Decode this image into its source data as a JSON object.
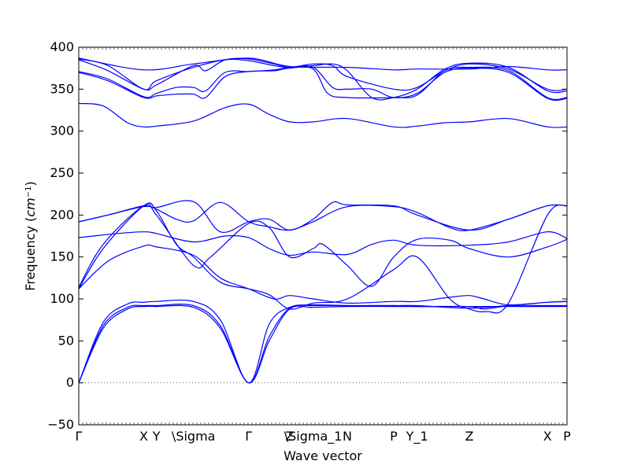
{
  "chart_data": {
    "type": "line",
    "title": "",
    "xlabel": "Wave vector",
    "ylabel": "Frequency (cm^-1)",
    "ylabel_math": "cm",
    "ylabel_exp": "−1",
    "ylim": [
      -50,
      400
    ],
    "yticks": [
      -50,
      0,
      50,
      100,
      150,
      200,
      250,
      300,
      350,
      400
    ],
    "xlim": [
      0,
      1
    ],
    "grid": false,
    "zero_line": {
      "value": 0,
      "style": "dotted"
    },
    "line_color": "#0000ff",
    "kpoints": [
      {
        "label": "Γ",
        "x": 0.0
      },
      {
        "label": "X",
        "x": 0.133
      },
      {
        "label": "Y",
        "x": 0.159
      },
      {
        "label": "\\Sigma",
        "x": 0.235
      },
      {
        "label": "Γ",
        "x": 0.348
      },
      {
        "label": "Z",
        "x": 0.432
      },
      {
        "label": "\\Sigma_1",
        "x": 0.48
      },
      {
        "label": "N",
        "x": 0.55
      },
      {
        "label": "P",
        "x": 0.645
      },
      {
        "label": "Y_1",
        "x": 0.693
      },
      {
        "label": "Z",
        "x": 0.8
      },
      {
        "label": "X",
        "x": 0.96
      },
      {
        "label": "P",
        "x": 1.0
      }
    ],
    "series": [
      {
        "x": [
          0,
          0.05,
          0.1,
          0.133,
          0.159,
          0.235,
          0.29,
          0.348,
          0.39,
          0.432,
          0.48,
          0.55,
          0.645,
          0.693,
          0.8,
          0.88,
          0.96,
          1.0
        ],
        "values": [
          0,
          65,
          88,
          91,
          91,
          90,
          65,
          0,
          50,
          88,
          90,
          91,
          91,
          91,
          91,
          91,
          91,
          91
        ]
      },
      {
        "x": [
          0,
          0.05,
          0.1,
          0.133,
          0.159,
          0.235,
          0.29,
          0.348,
          0.39,
          0.432,
          0.48,
          0.55,
          0.645,
          0.693,
          0.8,
          0.88,
          0.96,
          1.0
        ],
        "values": [
          0,
          68,
          90,
          92,
          92,
          92,
          68,
          0,
          55,
          89,
          92,
          92,
          92,
          92,
          89,
          92,
          92,
          92
        ]
      },
      {
        "x": [
          0,
          0.05,
          0.1,
          0.133,
          0.159,
          0.235,
          0.29,
          0.348,
          0.39,
          0.432,
          0.48,
          0.55,
          0.645,
          0.693,
          0.8,
          0.83,
          0.88,
          0.96,
          1.0
        ],
        "values": [
          0,
          72,
          94,
          96,
          97,
          97,
          75,
          0,
          70,
          90,
          93,
          92,
          92,
          91,
          91,
          88,
          92,
          96,
          97
        ]
      },
      {
        "x": [
          0,
          0.06,
          0.133,
          0.159,
          0.235,
          0.29,
          0.348,
          0.4,
          0.432,
          0.48,
          0.55,
          0.645,
          0.693,
          0.76,
          0.8,
          0.83,
          0.88,
          0.96,
          1.0
        ],
        "values": [
          112,
          145,
          163,
          162,
          152,
          125,
          112,
          100,
          104,
          100,
          95,
          97,
          97,
          102,
          104,
          100,
          93,
          96,
          97
        ]
      },
      {
        "x": [
          0,
          0.05,
          0.133,
          0.159,
          0.2,
          0.235,
          0.29,
          0.348,
          0.39,
          0.432,
          0.48,
          0.55,
          0.645,
          0.693,
          0.76,
          0.8,
          0.835,
          0.88,
          0.96,
          1.0
        ],
        "values": [
          112,
          160,
          211,
          205,
          165,
          150,
          120,
          112,
          105,
          88,
          95,
          100,
          135,
          150,
          100,
          88,
          85,
          95,
          200,
          211
        ]
      },
      {
        "x": [
          0,
          0.05,
          0.133,
          0.159,
          0.235,
          0.27,
          0.348,
          0.39,
          0.432,
          0.48,
          0.5,
          0.55,
          0.6,
          0.645,
          0.693,
          0.76,
          0.8,
          0.88,
          0.96,
          1.0
        ],
        "values": [
          114,
          165,
          211,
          200,
          140,
          150,
          190,
          185,
          150,
          160,
          165,
          140,
          115,
          150,
          171,
          170,
          160,
          150,
          162,
          171
        ]
      },
      {
        "x": [
          0,
          0.08,
          0.133,
          0.159,
          0.235,
          0.3,
          0.348,
          0.39,
          0.432,
          0.48,
          0.55,
          0.6,
          0.645,
          0.693,
          0.8,
          0.88,
          0.96,
          1.0
        ],
        "values": [
          173,
          178,
          180,
          178,
          168,
          175,
          173,
          160,
          152,
          156,
          153,
          165,
          170,
          164,
          164,
          168,
          180,
          172
        ]
      },
      {
        "x": [
          0,
          0.06,
          0.133,
          0.159,
          0.2,
          0.235,
          0.29,
          0.348,
          0.39,
          0.432,
          0.48,
          0.55,
          0.645,
          0.693,
          0.76,
          0.8,
          0.88,
          0.96,
          1.0
        ],
        "values": [
          192,
          200,
          210,
          207,
          195,
          193,
          215,
          192,
          186,
          182,
          192,
          210,
          210,
          203,
          185,
          182,
          195,
          211,
          211
        ]
      },
      {
        "x": [
          0,
          0.06,
          0.133,
          0.159,
          0.235,
          0.29,
          0.348,
          0.39,
          0.432,
          0.48,
          0.52,
          0.55,
          0.645,
          0.693,
          0.8,
          0.88,
          0.96,
          1.0
        ],
        "values": [
          192,
          200,
          211,
          209,
          216,
          180,
          192,
          195,
          182,
          195,
          215,
          212,
          211,
          200,
          182,
          195,
          211,
          211
        ]
      },
      {
        "x": [
          0,
          0.05,
          0.1,
          0.133,
          0.159,
          0.235,
          0.3,
          0.348,
          0.39,
          0.432,
          0.48,
          0.55,
          0.645,
          0.693,
          0.75,
          0.8,
          0.88,
          0.96,
          1.0
        ],
        "values": [
          333,
          330,
          310,
          305,
          306,
          312,
          328,
          332,
          320,
          311,
          311,
          315,
          305,
          306,
          310,
          311,
          315,
          305,
          305
        ]
      },
      {
        "x": [
          0,
          0.06,
          0.133,
          0.159,
          0.2,
          0.235,
          0.26,
          0.3,
          0.348,
          0.4,
          0.432,
          0.48,
          0.51,
          0.55,
          0.645,
          0.693,
          0.75,
          0.8,
          0.88,
          0.96,
          1.0
        ],
        "values": [
          370,
          360,
          340,
          342,
          344,
          344,
          340,
          365,
          371,
          372,
          375,
          374,
          345,
          340,
          340,
          343,
          372,
          376,
          372,
          340,
          340
        ]
      },
      {
        "x": [
          0,
          0.06,
          0.133,
          0.159,
          0.2,
          0.235,
          0.26,
          0.3,
          0.348,
          0.4,
          0.432,
          0.48,
          0.52,
          0.55,
          0.6,
          0.645,
          0.693,
          0.75,
          0.8,
          0.88,
          0.96,
          1.0
        ],
        "values": [
          371,
          362,
          341,
          345,
          352,
          352,
          348,
          370,
          371,
          373,
          376,
          376,
          352,
          350,
          350,
          340,
          345,
          370,
          375,
          370,
          339,
          339
        ]
      },
      {
        "x": [
          0,
          0.06,
          0.133,
          0.159,
          0.235,
          0.26,
          0.3,
          0.348,
          0.4,
          0.432,
          0.48,
          0.52,
          0.55,
          0.645,
          0.693,
          0.75,
          0.8,
          0.88,
          0.96,
          1.0
        ],
        "values": [
          385,
          372,
          350,
          355,
          378,
          372,
          385,
          386,
          380,
          376,
          380,
          378,
          365,
          350,
          352,
          372,
          380,
          374,
          350,
          350
        ]
      },
      {
        "x": [
          0,
          0.06,
          0.133,
          0.159,
          0.235,
          0.3,
          0.348,
          0.4,
          0.432,
          0.48,
          0.52,
          0.55,
          0.6,
          0.645,
          0.693,
          0.75,
          0.8,
          0.88,
          0.96,
          1.0
        ],
        "values": [
          386,
          378,
          350,
          360,
          376,
          385,
          384,
          378,
          376,
          378,
          380,
          372,
          340,
          340,
          350,
          374,
          381,
          376,
          348,
          348
        ]
      },
      {
        "x": [
          0,
          0.133,
          0.235,
          0.348,
          0.432,
          0.55,
          0.645,
          0.693,
          0.8,
          0.88,
          0.96,
          1.0
        ],
        "values": [
          387,
          373,
          380,
          387,
          377,
          376,
          373,
          374,
          374,
          377,
          373,
          373
        ]
      }
    ]
  }
}
